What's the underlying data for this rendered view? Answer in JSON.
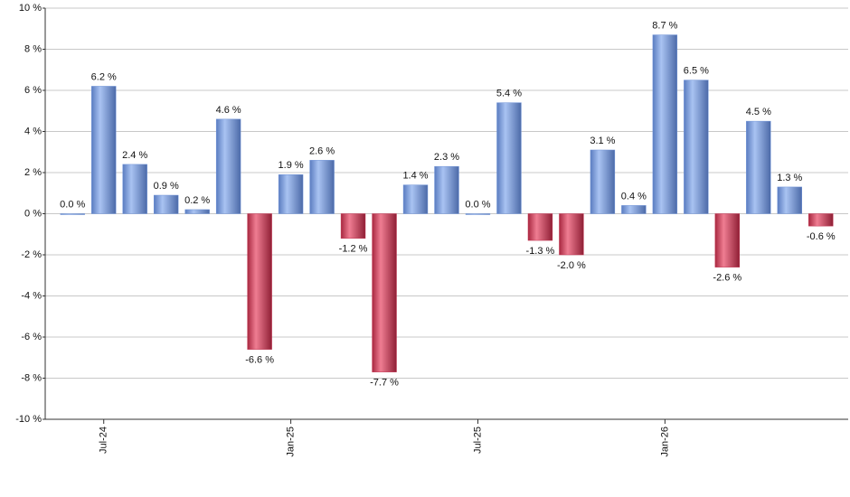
{
  "chart_data": {
    "type": "bar",
    "categories": [
      null,
      "Jul-24",
      null,
      null,
      null,
      null,
      null,
      "Jan-25",
      null,
      null,
      null,
      null,
      null,
      "Jul-25",
      null,
      null,
      null,
      null,
      null,
      "Jan-26",
      null,
      null,
      null,
      null,
      null
    ],
    "values": [
      0.0,
      6.2,
      2.4,
      0.9,
      0.2,
      4.6,
      -6.6,
      1.9,
      2.6,
      -1.2,
      -7.7,
      1.4,
      2.3,
      0.0,
      5.4,
      -1.3,
      -2.0,
      3.1,
      0.4,
      8.7,
      6.5,
      -2.6,
      4.5,
      1.3,
      -0.6
    ],
    "value_labels": [
      "0.0 %",
      "6.2 %",
      "2.4 %",
      "0.9 %",
      "0.2 %",
      "4.6 %",
      "-6.6 %",
      "1.9 %",
      "2.6 %",
      "-1.2 %",
      "-7.7 %",
      "1.4 %",
      "2.3 %",
      "0.0 %",
      "5.4 %",
      "-1.3 %",
      "-2.0 %",
      "3.1 %",
      "0.4 %",
      "8.7 %",
      "6.5 %",
      "-2.6 %",
      "4.5 %",
      "1.3 %",
      "-0.6 %"
    ],
    "color_positive": "#6f93d8",
    "color_negative": "#c23350",
    "ylim": [
      -10,
      10
    ],
    "yticks": [
      {
        "value": -10,
        "label": "-10 %"
      },
      {
        "value": -8,
        "label": "-8 %"
      },
      {
        "value": -6,
        "label": "-6 %"
      },
      {
        "value": -4,
        "label": "-4 %"
      },
      {
        "value": -2,
        "label": "-2 %"
      },
      {
        "value": 0,
        "label": "0 %"
      },
      {
        "value": 2,
        "label": "2 %"
      },
      {
        "value": 4,
        "label": "4 %"
      },
      {
        "value": 6,
        "label": "6 %"
      },
      {
        "value": 8,
        "label": "8 %"
      },
      {
        "value": 10,
        "label": "10 %"
      }
    ],
    "grid": true
  }
}
